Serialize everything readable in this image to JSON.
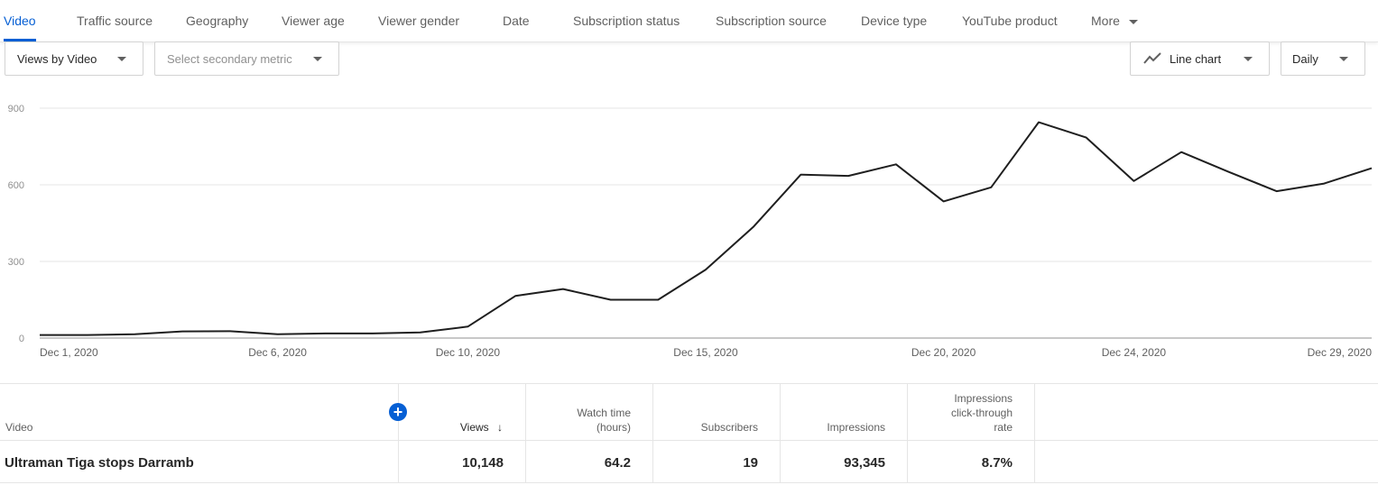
{
  "tabs": [
    "Video",
    "Traffic source",
    "Geography",
    "Viewer age",
    "Viewer gender",
    "Date",
    "Subscription status",
    "Subscription source",
    "Device type",
    "YouTube product"
  ],
  "more_label": "More",
  "controls": {
    "primary_metric": "Views by Video",
    "secondary_metric_placeholder": "Select secondary metric",
    "chart_type": "Line chart",
    "interval": "Daily"
  },
  "colors": {
    "accent": "#065fd4",
    "line": "#1f1f1f"
  },
  "chart_data": {
    "type": "line",
    "x": [
      "Dec 1, 2020",
      "Dec 2, 2020",
      "Dec 3, 2020",
      "Dec 4, 2020",
      "Dec 5, 2020",
      "Dec 6, 2020",
      "Dec 7, 2020",
      "Dec 8, 2020",
      "Dec 9, 2020",
      "Dec 10, 2020",
      "Dec 11, 2020",
      "Dec 12, 2020",
      "Dec 13, 2020",
      "Dec 14, 2020",
      "Dec 15, 2020",
      "Dec 16, 2020",
      "Dec 17, 2020",
      "Dec 18, 2020",
      "Dec 19, 2020",
      "Dec 20, 2020",
      "Dec 21, 2020",
      "Dec 22, 2020",
      "Dec 23, 2020",
      "Dec 24, 2020",
      "Dec 25, 2020",
      "Dec 26, 2020",
      "Dec 27, 2020",
      "Dec 28, 2020",
      "Dec 29, 2020"
    ],
    "series": [
      {
        "values": [
          12,
          12,
          15,
          26,
          27,
          15,
          18,
          18,
          22,
          45,
          165,
          192,
          150,
          150,
          268,
          435,
          640,
          635,
          680,
          535,
          590,
          845,
          785,
          615,
          728,
          650,
          575,
          605,
          665
        ]
      }
    ],
    "xticks": [
      {
        "index": 0,
        "label": "Dec 1, 2020"
      },
      {
        "index": 5,
        "label": "Dec 6, 2020"
      },
      {
        "index": 9,
        "label": "Dec 10, 2020"
      },
      {
        "index": 14,
        "label": "Dec 15, 2020"
      },
      {
        "index": 19,
        "label": "Dec 20, 2020"
      },
      {
        "index": 23,
        "label": "Dec 24, 2020"
      },
      {
        "index": 28,
        "label": "Dec 29, 2020"
      }
    ],
    "yticks": [
      0,
      300,
      600,
      900
    ],
    "ylim": [
      0,
      900
    ],
    "grid": true
  },
  "table": {
    "columns": [
      {
        "lines": [
          "Video"
        ]
      },
      {
        "lines": [
          "Views"
        ]
      },
      {
        "lines": [
          "Watch time",
          "(hours)"
        ]
      },
      {
        "lines": [
          "Subscribers"
        ]
      },
      {
        "lines": [
          "Impressions"
        ]
      },
      {
        "lines": [
          "Impressions",
          "click-through",
          "rate"
        ]
      }
    ],
    "rows": [
      {
        "video": "Ultraman Tiga stops Darramb",
        "views": "10,148",
        "watch_time": "64.2",
        "subscribers": "19",
        "impressions": "93,345",
        "ctr": "8.7%"
      }
    ]
  }
}
